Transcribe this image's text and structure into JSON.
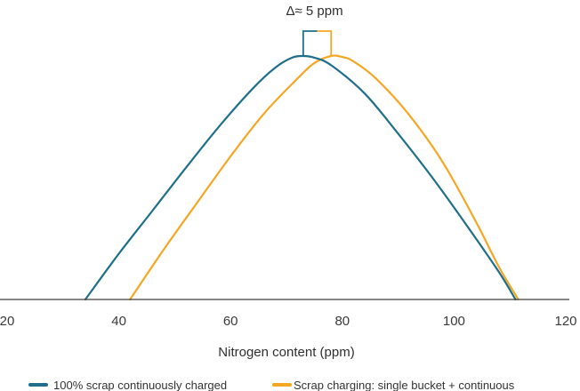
{
  "chart_data": {
    "type": "line",
    "title": "",
    "xlabel": "Nitrogen content (ppm)",
    "ylabel": "",
    "xlim": [
      20,
      120
    ],
    "xticks": [
      20,
      40,
      60,
      80,
      100,
      120
    ],
    "xtick_labels": [
      "20",
      "40",
      "60",
      "80",
      "100",
      "120"
    ],
    "grid": false,
    "legend_position": "bottom",
    "annotation": {
      "text": "Δ≈ 5 ppm",
      "x_from": 73,
      "x_to": 78
    },
    "series": [
      {
        "name": "100% scrap continuously charged",
        "color": "#1f6f8b",
        "x": [
          34,
          40,
          46,
          52,
          58,
          64,
          68,
          71,
          73,
          75,
          78,
          84,
          90,
          96,
          102,
          108,
          111
        ],
        "y": [
          0,
          0.188,
          0.364,
          0.541,
          0.712,
          0.867,
          0.952,
          0.993,
          1.0,
          0.993,
          0.962,
          0.846,
          0.681,
          0.504,
          0.313,
          0.114,
          0
        ]
      },
      {
        "name": "Scrap charging: single bucket + continuous",
        "color": "#f5a623",
        "x": [
          42,
          48,
          54,
          60,
          66,
          72,
          75,
          78,
          80,
          82,
          86,
          92,
          98,
          104,
          108,
          111.5
        ],
        "y": [
          0,
          0.204,
          0.397,
          0.588,
          0.764,
          0.908,
          0.971,
          1.0,
          0.996,
          0.978,
          0.908,
          0.757,
          0.563,
          0.316,
          0.135,
          0
        ]
      }
    ]
  }
}
